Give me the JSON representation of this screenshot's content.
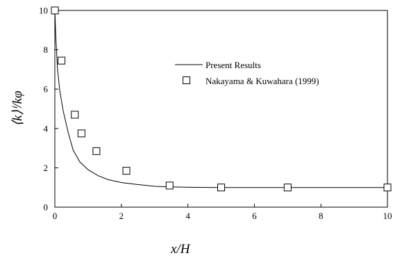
{
  "chart_data": {
    "type": "line",
    "title": "",
    "xlabel": "x/H",
    "ylabel": "⟨k⟩ⁱ/kφ",
    "xlim": [
      0,
      10
    ],
    "ylim": [
      0,
      10
    ],
    "xticks": [
      0,
      2,
      4,
      6,
      8,
      10
    ],
    "yticks": [
      0,
      2,
      4,
      6,
      8,
      10
    ],
    "grid": false,
    "legend_position": "top-right",
    "series": [
      {
        "name": "Present Results",
        "kind": "line",
        "color": "#000000",
        "x": [
          0,
          0.03,
          0.08,
          0.15,
          0.25,
          0.4,
          0.55,
          0.75,
          1.0,
          1.3,
          1.6,
          2.0,
          2.5,
          3.0,
          3.5,
          4.0,
          5.0,
          6.0,
          7.0,
          8.0,
          9.0,
          10.0
        ],
        "y": [
          10.0,
          8.6,
          7.0,
          5.9,
          4.9,
          3.8,
          2.9,
          2.3,
          1.9,
          1.6,
          1.4,
          1.25,
          1.15,
          1.06,
          1.03,
          1.01,
          1.0,
          1.0,
          1.0,
          1.0,
          1.0,
          1.0
        ]
      },
      {
        "name": "Nakayama & Kuwahara (1999)",
        "kind": "marker-square",
        "color": "#000000",
        "x": [
          0.0,
          0.2,
          0.6,
          0.8,
          1.25,
          2.15,
          3.45,
          5.0,
          7.0,
          10.0
        ],
        "y": [
          10.0,
          7.45,
          4.7,
          3.75,
          2.85,
          1.85,
          1.1,
          1.0,
          1.0,
          1.0
        ]
      }
    ]
  }
}
